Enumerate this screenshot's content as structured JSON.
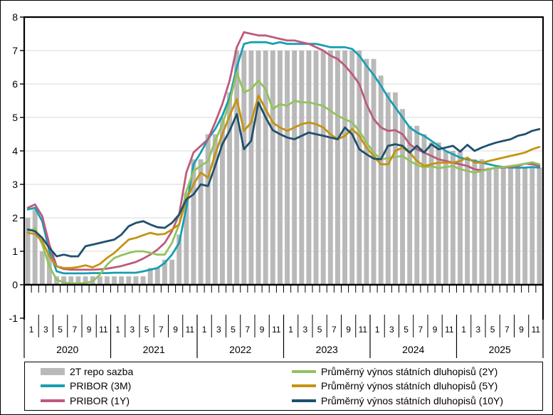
{
  "figure": {
    "background": "#ffffff",
    "border_color": "#000000",
    "plot_grid_color": "#d9d9d9",
    "axis_color": "#000000"
  },
  "chart_data": {
    "type": "bar+line",
    "description": "Monthly Czech interest rates in % : 2T repo rate as gray bars, PRIBOR and government bond yields as lines, Jan 2020 - Dec 2025",
    "x": {
      "years": [
        "2020",
        "2021",
        "2022",
        "2023",
        "2024",
        "2025"
      ],
      "months_per_year": 12,
      "month_tick_labels": [
        "1",
        "3",
        "5",
        "7",
        "9",
        "11"
      ]
    },
    "y": {
      "min": -1,
      "max": 8,
      "tick_labels": [
        8,
        7,
        6,
        5,
        4,
        3,
        2,
        1,
        0,
        -1
      ],
      "gridlines": [
        7,
        6,
        5,
        4,
        3,
        2,
        1
      ],
      "grid_color": "#d9d9d9"
    },
    "series": [
      {
        "id": "repo",
        "name": "2T repo sazba",
        "type": "bar",
        "color": "#b9b9b9",
        "values": [
          2.0,
          2.25,
          1.0,
          1.0,
          0.25,
          0.25,
          0.25,
          0.25,
          0.25,
          0.25,
          0.25,
          0.25,
          0.25,
          0.25,
          0.25,
          0.25,
          0.25,
          0.5,
          0.5,
          0.75,
          0.75,
          1.5,
          2.75,
          3.75,
          3.75,
          4.5,
          4.5,
          5.0,
          5.75,
          7.0,
          7.0,
          7.0,
          7.0,
          7.0,
          7.0,
          7.0,
          7.0,
          7.0,
          7.0,
          7.0,
          7.0,
          7.0,
          7.0,
          7.0,
          7.0,
          7.0,
          7.0,
          6.75,
          6.75,
          6.25,
          5.75,
          5.75,
          5.25,
          4.75,
          4.75,
          4.5,
          4.25,
          4.25,
          4.0,
          4.0,
          4.0,
          3.75,
          3.75,
          3.75,
          3.5,
          3.5,
          3.5,
          3.5,
          3.5,
          3.5,
          3.5,
          3.5
        ]
      },
      {
        "id": "pribor-3m",
        "name": "PRIBOR (3M)",
        "type": "line",
        "color": "#189eb2",
        "values": [
          2.25,
          2.3,
          1.9,
          1.0,
          0.4,
          0.34,
          0.34,
          0.34,
          0.34,
          0.35,
          0.35,
          0.35,
          0.36,
          0.36,
          0.36,
          0.36,
          0.4,
          0.45,
          0.5,
          0.65,
          0.9,
          1.25,
          2.3,
          3.6,
          3.95,
          4.35,
          4.65,
          5.05,
          5.6,
          6.5,
          7.2,
          7.25,
          7.25,
          7.25,
          7.2,
          7.25,
          7.2,
          7.2,
          7.2,
          7.2,
          7.2,
          7.15,
          7.1,
          7.1,
          7.1,
          7.05,
          6.85,
          6.55,
          6.27,
          5.95,
          5.6,
          5.3,
          5.0,
          4.7,
          4.55,
          4.45,
          4.3,
          4.15,
          4.0,
          3.9,
          3.8,
          3.75,
          3.7,
          3.65,
          3.6,
          3.55,
          3.52,
          3.5,
          3.5,
          3.5,
          3.52,
          3.5
        ]
      },
      {
        "id": "pribor-1y",
        "name": "PRIBOR (1Y)",
        "type": "line",
        "color": "#bd5a7e",
        "values": [
          2.3,
          2.4,
          2.05,
          1.2,
          0.55,
          0.47,
          0.45,
          0.45,
          0.45,
          0.45,
          0.46,
          0.48,
          0.52,
          0.56,
          0.62,
          0.68,
          0.78,
          0.9,
          1.05,
          1.25,
          1.6,
          2.1,
          3.35,
          3.95,
          4.15,
          4.35,
          4.85,
          5.4,
          6.1,
          7.1,
          7.55,
          7.5,
          7.45,
          7.45,
          7.4,
          7.35,
          7.3,
          7.3,
          7.25,
          7.2,
          7.1,
          7.0,
          6.85,
          6.75,
          6.55,
          6.3,
          6.0,
          5.4,
          4.95,
          4.7,
          4.6,
          4.62,
          4.5,
          4.2,
          4.05,
          3.95,
          3.85,
          3.75,
          3.7,
          3.65,
          3.6,
          3.55,
          3.45,
          3.42,
          3.45,
          3.5,
          3.5,
          3.52,
          3.55,
          3.62,
          3.6,
          3.55
        ]
      },
      {
        "id": "bond-2y",
        "name": "Průměrný výnos státních dluhopisů (2Y)",
        "type": "line",
        "color": "#92c35e",
        "values": [
          1.6,
          1.68,
          1.2,
          0.55,
          0.15,
          0.07,
          0.04,
          0.04,
          0.05,
          0.1,
          0.3,
          0.6,
          0.8,
          0.88,
          0.95,
          1.0,
          1.0,
          0.95,
          0.9,
          0.9,
          1.25,
          1.8,
          2.8,
          3.4,
          3.55,
          3.7,
          4.3,
          4.8,
          5.45,
          6.35,
          5.75,
          5.85,
          6.1,
          5.85,
          5.25,
          5.4,
          5.35,
          5.5,
          5.45,
          5.45,
          5.4,
          5.35,
          5.2,
          5.05,
          4.95,
          4.85,
          4.6,
          4.25,
          3.95,
          3.75,
          3.78,
          3.82,
          3.85,
          3.7,
          3.58,
          3.5,
          3.55,
          3.48,
          3.52,
          3.55,
          3.45,
          3.4,
          3.35,
          3.4,
          3.45,
          3.5,
          3.52,
          3.55,
          3.58,
          3.62,
          3.66,
          3.6
        ]
      },
      {
        "id": "bond-5y",
        "name": "Průměrný výnos státních dluhopisů (5Y)",
        "type": "line",
        "color": "#c59311",
        "values": [
          1.55,
          1.52,
          1.3,
          0.85,
          0.55,
          0.5,
          0.5,
          0.53,
          0.58,
          0.52,
          0.62,
          0.8,
          0.95,
          1.15,
          1.35,
          1.4,
          1.48,
          1.55,
          1.5,
          1.52,
          1.65,
          1.8,
          2.55,
          3.0,
          3.35,
          3.2,
          3.9,
          4.5,
          5.05,
          5.55,
          4.6,
          4.85,
          5.65,
          5.25,
          4.85,
          4.7,
          4.6,
          4.7,
          4.8,
          4.85,
          4.8,
          4.7,
          4.5,
          4.35,
          4.45,
          4.65,
          4.45,
          4.1,
          3.85,
          3.6,
          3.6,
          4.0,
          4.1,
          3.95,
          3.7,
          3.55,
          3.6,
          3.65,
          3.65,
          3.65,
          3.7,
          3.8,
          3.65,
          3.65,
          3.7,
          3.75,
          3.8,
          3.85,
          3.9,
          3.95,
          4.05,
          4.12
        ]
      },
      {
        "id": "bond-10y",
        "name": "Průměrný výnos státních dluhopisů (10Y)",
        "type": "line",
        "color": "#20506c",
        "values": [
          1.65,
          1.6,
          1.4,
          1.1,
          0.85,
          0.9,
          0.85,
          0.85,
          1.15,
          1.2,
          1.25,
          1.3,
          1.35,
          1.5,
          1.75,
          1.85,
          1.9,
          1.8,
          1.72,
          1.7,
          1.85,
          2.1,
          2.55,
          2.7,
          3.0,
          2.95,
          3.55,
          4.2,
          4.6,
          5.1,
          4.05,
          4.3,
          5.45,
          5.0,
          4.62,
          4.5,
          4.4,
          4.35,
          4.45,
          4.55,
          4.5,
          4.45,
          4.4,
          4.35,
          4.7,
          4.5,
          4.05,
          3.9,
          3.77,
          3.75,
          4.15,
          4.2,
          4.15,
          3.95,
          4.15,
          3.95,
          4.2,
          4.05,
          4.1,
          4.15,
          3.98,
          4.18,
          4.0,
          4.1,
          4.18,
          4.25,
          4.3,
          4.35,
          4.45,
          4.5,
          4.6,
          4.65
        ]
      }
    ],
    "legend_position": "bottom",
    "legend_columns": 2
  }
}
